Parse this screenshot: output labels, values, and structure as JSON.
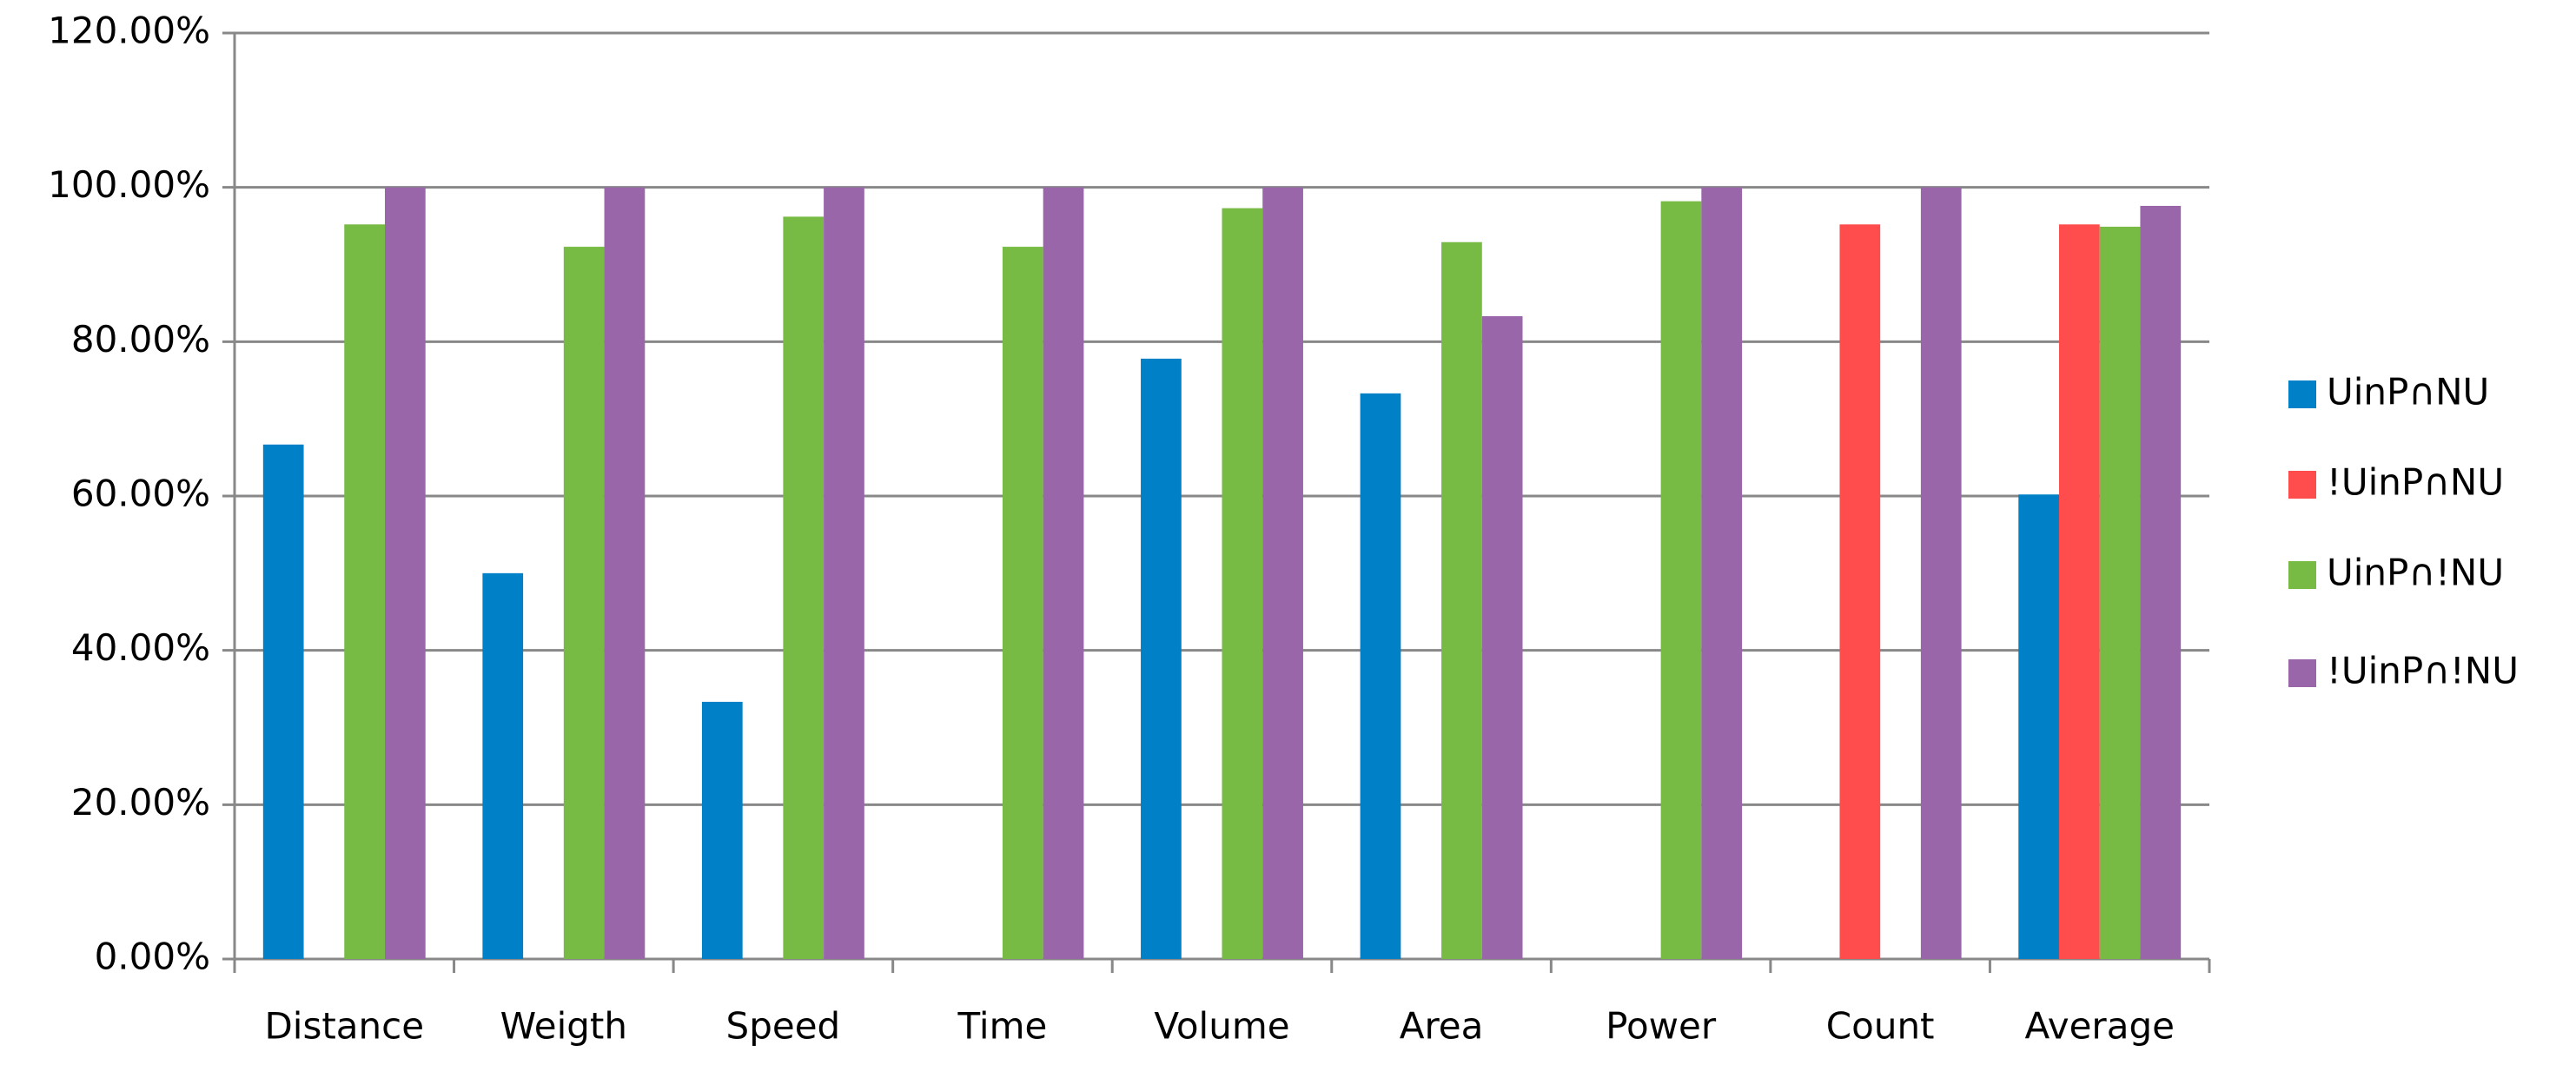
{
  "chart_data": {
    "type": "bar",
    "categories": [
      "Distance",
      "Weigth",
      "Speed",
      "Time",
      "Volume",
      "Area",
      "Power",
      "Count",
      "Average"
    ],
    "series": [
      {
        "name": "UinP∩NU",
        "color": "#0080c6",
        "values": [
          66.67,
          50,
          33.33,
          null,
          77.8,
          73.3,
          null,
          null,
          60.2
        ]
      },
      {
        "name": "!UinP∩NU",
        "color": "#ff4d4d",
        "values": [
          null,
          null,
          null,
          null,
          null,
          null,
          null,
          95.2,
          95.2
        ]
      },
      {
        "name": "UinP∩!NU",
        "color": "#77bb44",
        "values": [
          95.2,
          92.3,
          96.2,
          92.3,
          97.3,
          92.9,
          98.2,
          null,
          94.9
        ]
      },
      {
        "name": "!UinP∩!NU",
        "color": "#9966aa",
        "values": [
          100,
          100,
          100,
          100,
          100,
          83.3,
          100,
          100,
          97.6
        ]
      }
    ],
    "ylim": [
      0,
      120
    ],
    "yticks": [
      {
        "value": 0,
        "label": "0.00%"
      },
      {
        "value": 20,
        "label": "20.00%"
      },
      {
        "value": 40,
        "label": "40.00%"
      },
      {
        "value": 60,
        "label": "60.00%"
      },
      {
        "value": 80,
        "label": "80.00%"
      },
      {
        "value": 100,
        "label": "100.00%"
      },
      {
        "value": 120,
        "label": "120.00%"
      }
    ],
    "grid": true,
    "legend": "right"
  }
}
